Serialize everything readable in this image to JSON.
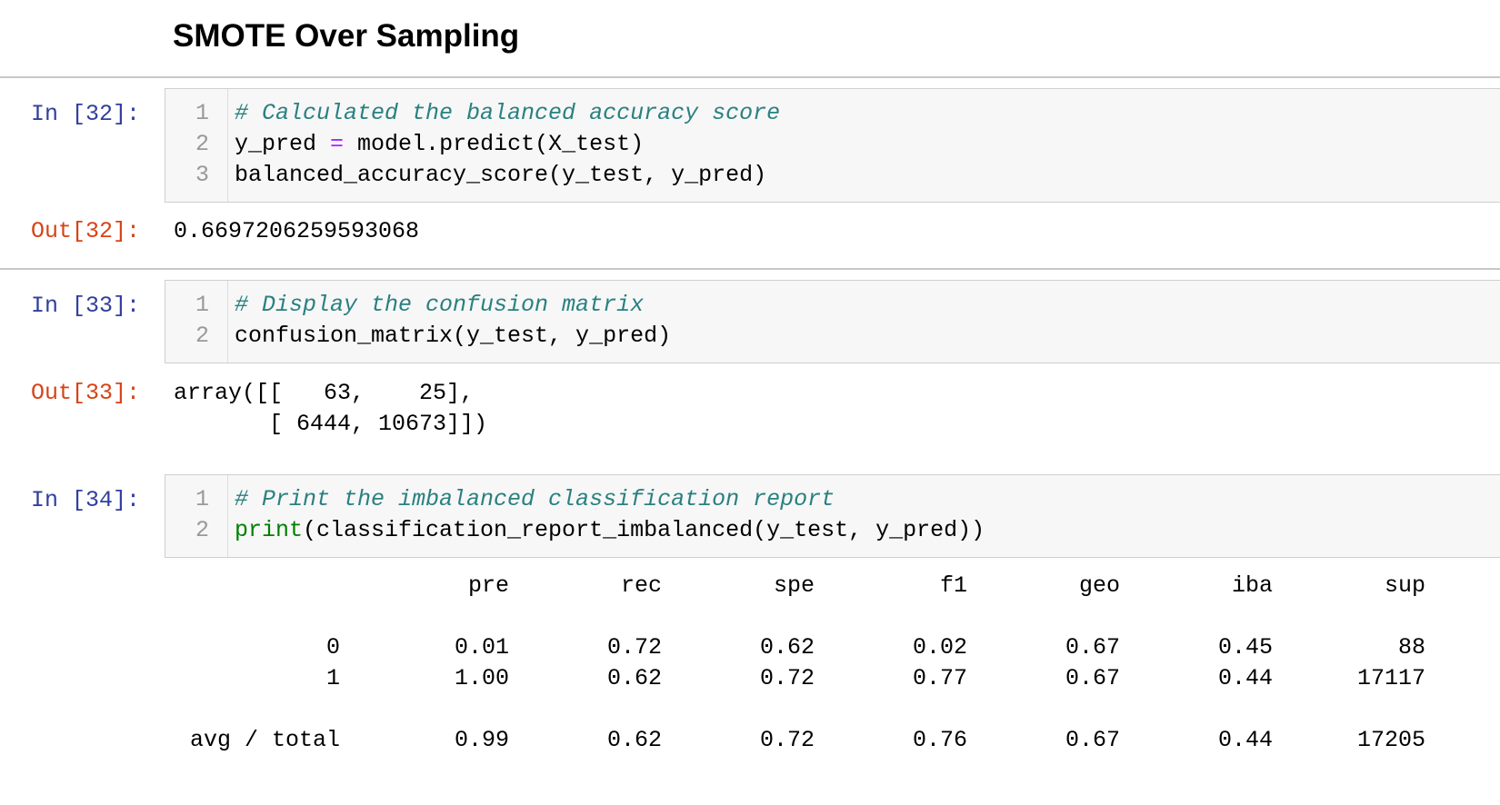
{
  "heading": "SMOTE Over Sampling",
  "cells": [
    {
      "prompt_in": "In [32]:",
      "line_numbers": [
        "1",
        "2",
        "3"
      ],
      "code": [
        [
          {
            "text": "# Calculated the balanced accuracy score",
            "color": "#2a8080",
            "style": "italic"
          }
        ],
        [
          {
            "text": "y_pred "
          },
          {
            "text": "=",
            "color": "#aa22ff"
          },
          {
            "text": " model.predict(X_test)"
          }
        ],
        [
          {
            "text": "balanced_accuracy_score(y_test, y_pred)"
          }
        ]
      ],
      "prompt_out": "Out[32]:",
      "output": [
        "0.6697206259593068"
      ]
    },
    {
      "prompt_in": "In [33]:",
      "line_numbers": [
        "1",
        "2"
      ],
      "code": [
        [
          {
            "text": "# Display the confusion matrix",
            "color": "#2a8080",
            "style": "italic"
          }
        ],
        [
          {
            "text": "confusion_matrix(y_test, y_pred)"
          }
        ]
      ],
      "prompt_out": "Out[33]:",
      "output": [
        "array([[   63,    25],",
        "       [ 6444, 10673]])"
      ]
    },
    {
      "prompt_in": "In [34]:",
      "line_numbers": [
        "1",
        "2"
      ],
      "code": [
        [
          {
            "text": "# Print the imbalanced classification report",
            "color": "#2a8080",
            "style": "italic"
          }
        ],
        [
          {
            "text": "print",
            "color": "#008000"
          },
          {
            "text": "(classification_report_imbalanced(y_test, y_pred))"
          }
        ]
      ],
      "report": {
        "header": [
          "pre",
          "rec",
          "spe",
          "f1",
          "geo",
          "iba",
          "sup"
        ],
        "rows": [
          {
            "label": "0",
            "values": [
              "0.01",
              "0.72",
              "0.62",
              "0.02",
              "0.67",
              "0.45",
              "88"
            ]
          },
          {
            "label": "1",
            "values": [
              "1.00",
              "0.62",
              "0.72",
              "0.77",
              "0.67",
              "0.44",
              "17117"
            ]
          },
          {
            "label": "avg / total",
            "values": [
              "0.99",
              "0.62",
              "0.72",
              "0.76",
              "0.67",
              "0.44",
              "17205"
            ]
          }
        ]
      }
    }
  ]
}
